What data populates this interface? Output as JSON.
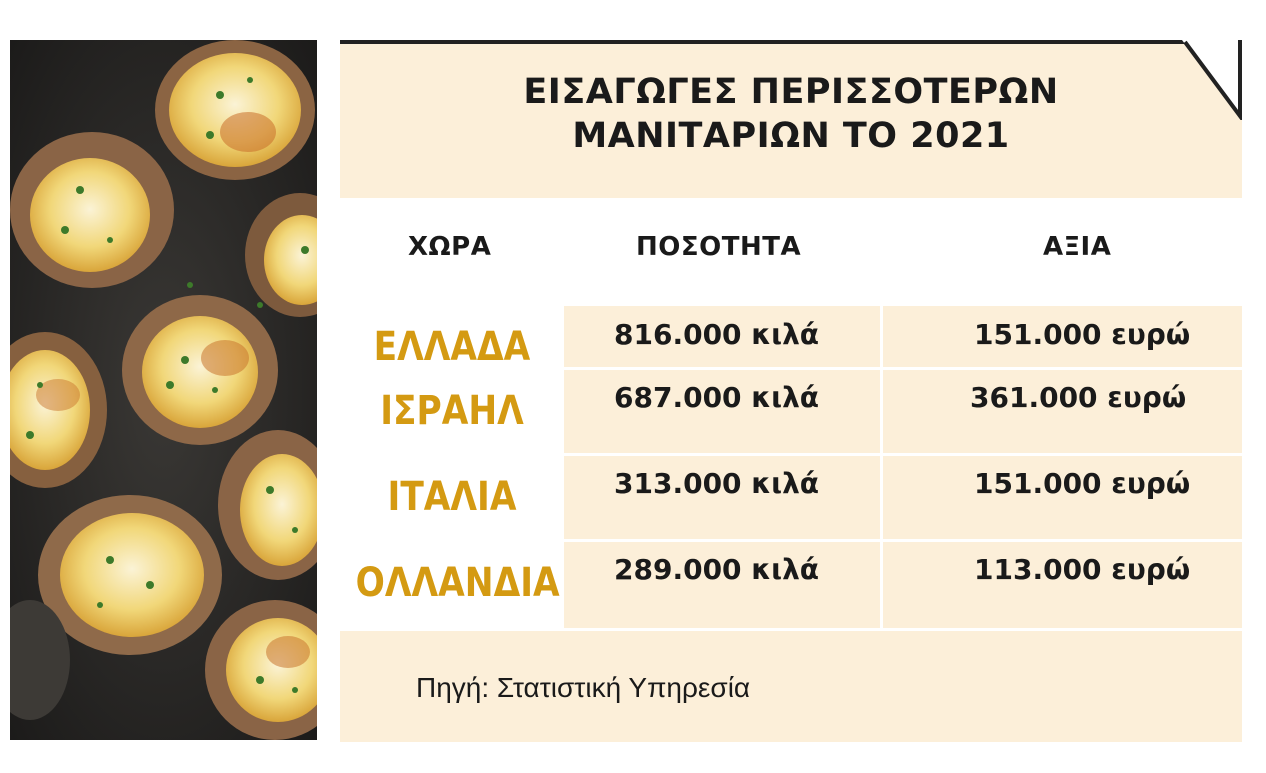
{
  "title": {
    "line1": "ΕΙΣΑΓΩΓΕΣ ΠΕΡΙΣΣΟΤΕΡΩΝ",
    "line2": "ΜΑΝΙΤΑΡΙΩΝ ΤΟ 2021"
  },
  "table": {
    "headers": {
      "country": "ΧΩΡΑ",
      "quantity": "ΠΟΣΟΤΗΤΑ",
      "value": "ΑΞΙΑ"
    },
    "rows": [
      {
        "country": "ΕΛΛΑΔΑ",
        "quantity": "816.000 κιλά",
        "value": "151.000 ευρώ"
      },
      {
        "country": "ΙΣΡΑΗΛ",
        "quantity": "687.000 κιλά",
        "value": "361.000 ευρώ"
      },
      {
        "country": "ΙΤΑΛΙΑ",
        "quantity": "313.000 κιλά",
        "value": "151.000 ευρώ"
      },
      {
        "country": "ΟΛΛΑΝΔΙΑ",
        "quantity": "289.000 κιλά",
        "value": "113.000 ευρώ"
      }
    ]
  },
  "source": "Πηγή: Στατιστική Υπηρεσία",
  "colors": {
    "panel_background": "#fcefd9",
    "country_text": "#d49a12",
    "body_text": "#1a1a1a"
  },
  "image": {
    "subject": "stuffed-mushrooms-photo"
  }
}
